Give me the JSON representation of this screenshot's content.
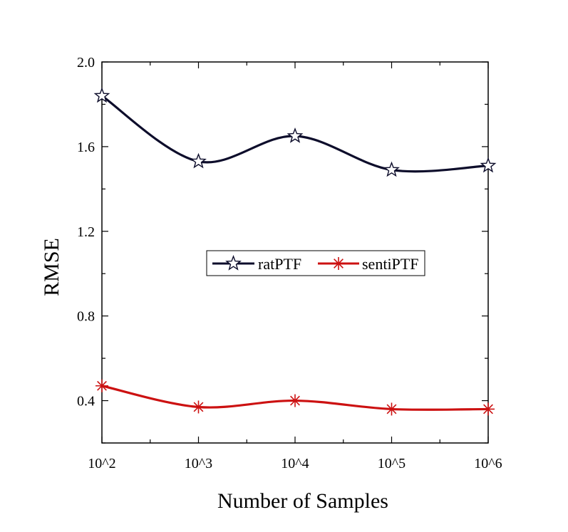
{
  "chart_data": {
    "type": "line",
    "title": "",
    "xlabel": "Number of Samples",
    "ylabel": "RMSE",
    "categories": [
      "10^2",
      "10^3",
      "10^4",
      "10^5",
      "10^6"
    ],
    "ylim": [
      0.2,
      2.0
    ],
    "yticks": [
      "0.4",
      "0.8",
      "1.2",
      "1.6",
      "2.0"
    ],
    "grid": false,
    "legend_position": "center",
    "series": [
      {
        "name": "ratPTF",
        "values": [
          1.84,
          1.53,
          1.65,
          1.49,
          1.51
        ],
        "color": "#0d0d2b",
        "marker": "star"
      },
      {
        "name": "sentiPTF",
        "values": [
          0.47,
          0.37,
          0.4,
          0.36,
          0.36
        ],
        "color": "#cc1111",
        "marker": "asterisk"
      }
    ]
  }
}
